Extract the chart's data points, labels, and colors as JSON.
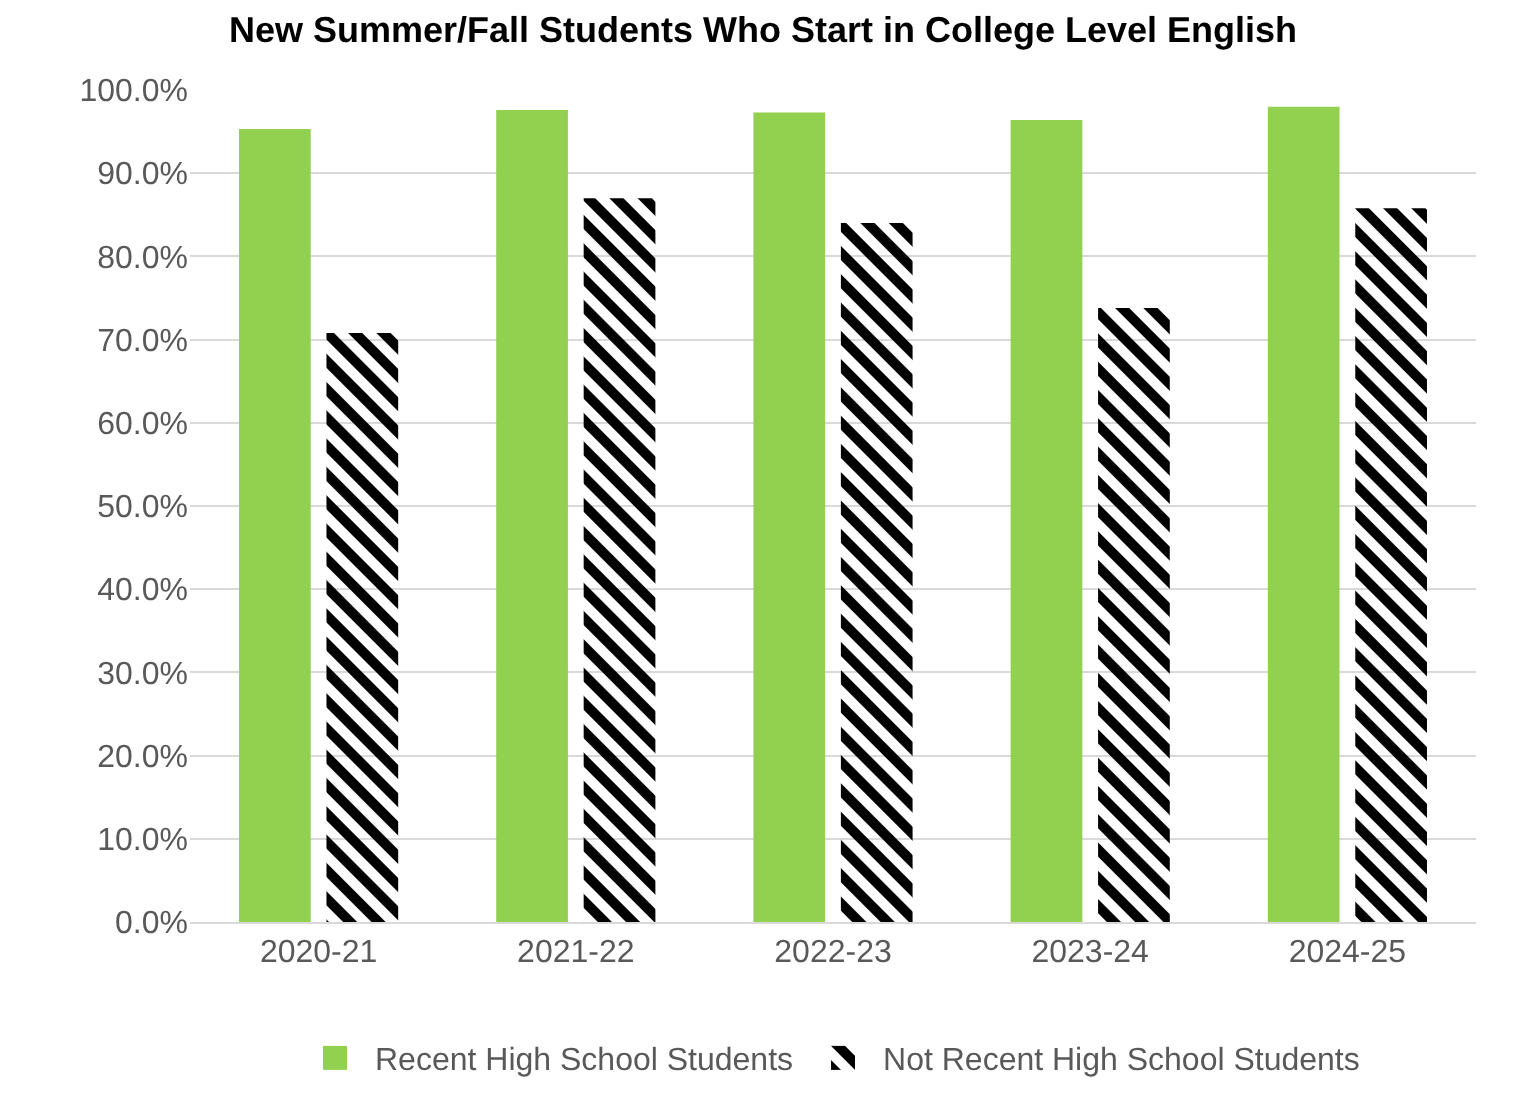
{
  "chart_data": {
    "type": "bar",
    "title": "New Summer/Fall Students Who Start in College Level English",
    "categories": [
      "2020-21",
      "2021-22",
      "2022-23",
      "2023-24",
      "2024-25"
    ],
    "series": [
      {
        "name": "Recent High School Students",
        "color": "#92d050",
        "values": [
          95.3,
          97.6,
          97.3,
          96.4,
          98.0
        ]
      },
      {
        "name": "Not Recent High School Students",
        "color": "#000000",
        "values": [
          70.8,
          87.0,
          84.0,
          73.8,
          85.8
        ]
      }
    ],
    "ylim": [
      0,
      100
    ],
    "yticks": [
      {
        "value": 0,
        "label": "0.0%"
      },
      {
        "value": 10,
        "label": "10.0%"
      },
      {
        "value": 20,
        "label": "20.0%"
      },
      {
        "value": 30,
        "label": "30.0%"
      },
      {
        "value": 40,
        "label": "40.0%"
      },
      {
        "value": 50,
        "label": "50.0%"
      },
      {
        "value": 60,
        "label": "60.0%"
      },
      {
        "value": 70,
        "label": "70.0%"
      },
      {
        "value": 80,
        "label": "80.0%"
      },
      {
        "value": 90,
        "label": "90.0%"
      },
      {
        "value": 100,
        "label": "100.0%"
      }
    ],
    "grid": "y",
    "legend": "bottom"
  }
}
